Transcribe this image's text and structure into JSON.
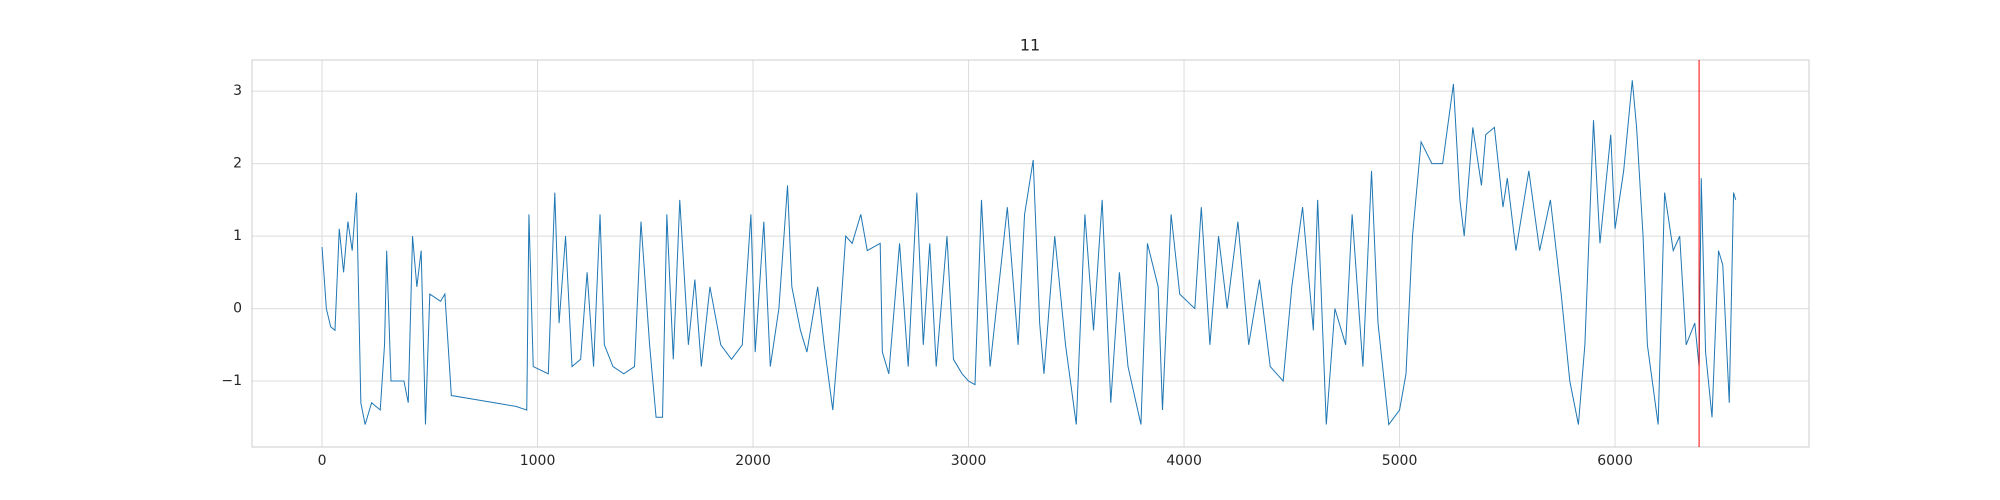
{
  "chart_data": {
    "type": "line",
    "title": "11",
    "x": [
      0,
      20,
      40,
      60,
      80,
      100,
      120,
      140,
      160,
      180,
      200,
      230,
      270,
      290,
      300,
      320,
      380,
      400,
      420,
      440,
      460,
      480,
      500,
      550,
      570,
      600,
      700,
      800,
      900,
      950,
      960,
      980,
      1050,
      1080,
      1100,
      1130,
      1160,
      1200,
      1230,
      1260,
      1290,
      1310,
      1350,
      1400,
      1450,
      1480,
      1520,
      1550,
      1580,
      1600,
      1630,
      1660,
      1700,
      1730,
      1760,
      1800,
      1850,
      1900,
      1950,
      1990,
      2010,
      2050,
      2080,
      2120,
      2160,
      2180,
      2220,
      2250,
      2300,
      2330,
      2370,
      2400,
      2430,
      2460,
      2500,
      2530,
      2590,
      2600,
      2630,
      2680,
      2720,
      2760,
      2790,
      2820,
      2850,
      2900,
      2930,
      2970,
      3000,
      3030,
      3060,
      3100,
      3140,
      3180,
      3230,
      3260,
      3300,
      3330,
      3350,
      3400,
      3450,
      3500,
      3540,
      3580,
      3620,
      3660,
      3700,
      3740,
      3800,
      3830,
      3880,
      3900,
      3940,
      3980,
      4050,
      4080,
      4120,
      4160,
      4200,
      4250,
      4300,
      4350,
      4400,
      4460,
      4500,
      4550,
      4600,
      4620,
      4660,
      4700,
      4750,
      4780,
      4830,
      4870,
      4900,
      4950,
      5000,
      5030,
      5060,
      5100,
      5150,
      5200,
      5250,
      5280,
      5300,
      5340,
      5380,
      5400,
      5440,
      5480,
      5500,
      5540,
      5600,
      5650,
      5700,
      5750,
      5790,
      5830,
      5860,
      5900,
      5930,
      5980,
      6000,
      6040,
      6080,
      6100,
      6130,
      6150,
      6200,
      6230,
      6270,
      6300,
      6330,
      6370,
      6390,
      6400,
      6420,
      6450,
      6480,
      6500,
      6530,
      6550,
      6560
    ],
    "series": [
      {
        "color": "#1f77b4",
        "values": [
          0.85,
          0.0,
          -0.25,
          -0.3,
          1.1,
          0.5,
          1.2,
          0.8,
          1.6,
          -1.3,
          -1.6,
          -1.3,
          -1.4,
          -0.5,
          0.8,
          -1.0,
          -1.0,
          -1.3,
          1.0,
          0.3,
          0.8,
          -1.6,
          0.2,
          0.1,
          0.2,
          -1.2,
          -1.25,
          -1.3,
          -1.35,
          -1.4,
          1.3,
          -0.8,
          -0.9,
          1.6,
          -0.2,
          1.0,
          -0.8,
          -0.7,
          0.5,
          -0.8,
          1.3,
          -0.5,
          -0.8,
          -0.9,
          -0.8,
          1.2,
          -0.5,
          -1.5,
          -1.5,
          1.3,
          -0.7,
          1.5,
          -0.5,
          0.4,
          -0.8,
          0.3,
          -0.5,
          -0.7,
          -0.5,
          1.3,
          -0.6,
          1.2,
          -0.8,
          0.0,
          1.7,
          0.3,
          -0.3,
          -0.6,
          0.3,
          -0.5,
          -1.4,
          -0.3,
          1.0,
          0.9,
          1.3,
          0.8,
          0.9,
          -0.6,
          -0.9,
          0.9,
          -0.8,
          1.6,
          -0.5,
          0.9,
          -0.8,
          1.0,
          -0.7,
          -0.9,
          -1.0,
          -1.05,
          1.5,
          -0.8,
          0.3,
          1.4,
          -0.5,
          1.3,
          2.05,
          -0.2,
          -0.9,
          1.0,
          -0.5,
          -1.6,
          1.3,
          -0.3,
          1.5,
          -1.3,
          0.5,
          -0.8,
          -1.6,
          0.9,
          0.3,
          -1.4,
          1.3,
          0.2,
          0.0,
          1.4,
          -0.5,
          1.0,
          0.0,
          1.2,
          -0.5,
          0.4,
          -0.8,
          -1.0,
          0.3,
          1.4,
          -0.3,
          1.5,
          -1.6,
          0.0,
          -0.5,
          1.3,
          -0.8,
          1.9,
          -0.2,
          -1.6,
          -1.4,
          -0.9,
          1.0,
          2.3,
          2.0,
          2.0,
          3.1,
          1.5,
          1.0,
          2.5,
          1.7,
          2.4,
          2.5,
          1.4,
          1.8,
          0.8,
          1.9,
          0.8,
          1.5,
          0.2,
          -1.0,
          -1.6,
          -0.5,
          2.6,
          0.9,
          2.4,
          1.1,
          1.9,
          3.15,
          2.5,
          1.0,
          -0.5,
          -1.6,
          1.6,
          0.8,
          1.0,
          -0.5,
          -0.2,
          -0.8,
          1.8,
          -0.6,
          -1.5,
          0.8,
          0.6,
          -1.3,
          1.6,
          1.5
        ]
      }
    ],
    "vline_x": 6390,
    "vline_color": "#ff0000",
    "xlim": [
      -325,
      6900
    ],
    "ylim": [
      -1.91,
      3.43
    ],
    "xticks": [
      0,
      1000,
      2000,
      3000,
      4000,
      5000,
      6000
    ],
    "yticks": [
      {
        "value": -1,
        "label": "−1"
      },
      0,
      1,
      2,
      3
    ],
    "grid": true
  }
}
